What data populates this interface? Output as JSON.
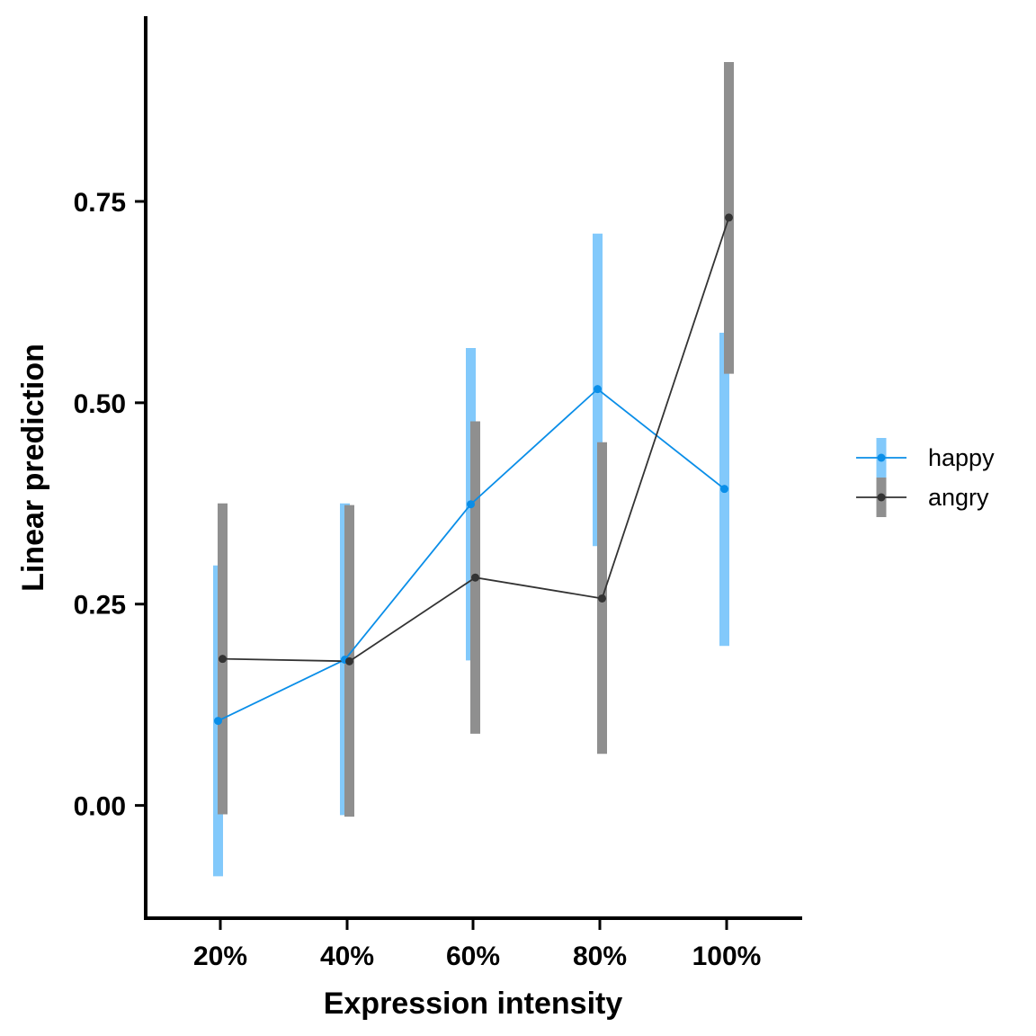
{
  "chart_data": {
    "type": "line",
    "categories": [
      "20%",
      "40%",
      "60%",
      "80%",
      "100%"
    ],
    "xlabel": "Expression intensity",
    "ylabel": "Linear prediction",
    "ylim": [
      -0.14,
      0.98
    ],
    "yticks": [
      0.0,
      0.25,
      0.5,
      0.75
    ],
    "ytick_labels": [
      "0.00",
      "0.25",
      "0.50",
      "0.75"
    ],
    "grid": false,
    "legend_position": "right",
    "series": [
      {
        "name": "happy",
        "color": "#0a8ee8",
        "ci_color": "#82c9fb",
        "values": [
          0.105,
          0.181,
          0.374,
          0.517,
          0.393
        ],
        "lower": [
          -0.088,
          -0.012,
          0.18,
          0.322,
          0.198
        ],
        "upper": [
          0.298,
          0.375,
          0.568,
          0.71,
          0.587
        ]
      },
      {
        "name": "angry",
        "color": "#333333",
        "ci_color": "#8f8f8f",
        "values": [
          0.182,
          0.179,
          0.283,
          0.257,
          0.73
        ],
        "lower": [
          -0.011,
          -0.014,
          0.089,
          0.064,
          0.536
        ],
        "upper": [
          0.375,
          0.373,
          0.477,
          0.451,
          0.923
        ]
      }
    ]
  }
}
